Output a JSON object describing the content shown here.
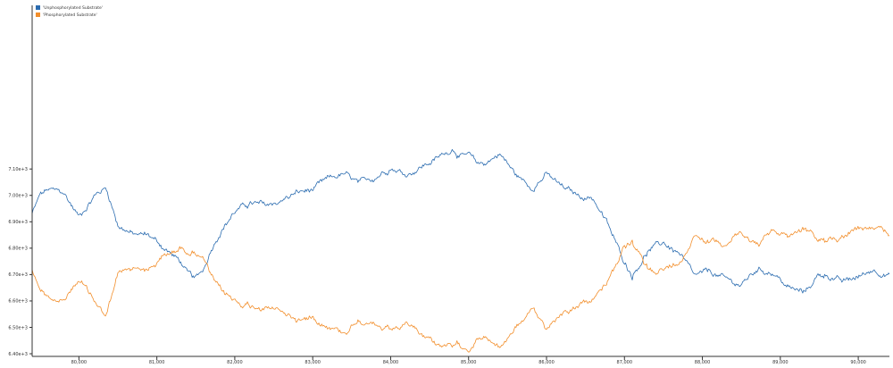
{
  "chart_data": {
    "type": "line",
    "title": "",
    "xlabel": "",
    "ylabel": "",
    "xlim": [
      79400,
      90400
    ],
    "ylim": [
      6390,
      7720
    ],
    "grid": false,
    "legend_position": "top-left",
    "x_ticks": [
      80000,
      81000,
      82000,
      83000,
      84000,
      85000,
      86000,
      87000,
      88000,
      89000,
      90000
    ],
    "x_tick_labels": [
      "80,000",
      "81,000",
      "82,000",
      "83,000",
      "84,000",
      "85,000",
      "86,000",
      "87,000",
      "88,000",
      "89,000",
      "90,000"
    ],
    "y_ticks": [
      6400,
      6500,
      6600,
      6700,
      6800,
      6900,
      7000,
      7100
    ],
    "y_tick_labels": [
      "6.40e+3",
      "6.50e+3",
      "6.60e+3",
      "6.70e+3",
      "6.80e+3",
      "6.90e+3",
      "7.00e+3",
      "7.10e+3"
    ],
    "series": [
      {
        "name": "'Unphosphorylated Substrate'",
        "color": "#2b6cb0",
        "x": [
          79400,
          79500,
          79600,
          79800,
          80000,
          80100,
          80200,
          80350,
          80500,
          80700,
          80900,
          81100,
          81300,
          81400,
          81500,
          81600,
          81700,
          81800,
          82000,
          82200,
          82400,
          82600,
          82800,
          83000,
          83200,
          83400,
          83600,
          83800,
          84000,
          84200,
          84400,
          84600,
          84800,
          84900,
          85000,
          85100,
          85200,
          85400,
          85600,
          85800,
          86000,
          86200,
          86400,
          86600,
          86800,
          86900,
          87000,
          87100,
          87300,
          87500,
          87700,
          87900,
          88100,
          88300,
          88500,
          88700,
          88900,
          89100,
          89300,
          89500,
          89600,
          89800,
          90000,
          90200,
          90400
        ],
        "y": [
          6930,
          7000,
          7020,
          7010,
          6920,
          6960,
          7000,
          7030,
          6890,
          6850,
          6850,
          6800,
          6750,
          6700,
          6680,
          6720,
          6800,
          6860,
          6940,
          6970,
          6960,
          6980,
          7010,
          7020,
          7060,
          7080,
          7040,
          7070,
          7110,
          7080,
          7110,
          7140,
          7180,
          7150,
          7150,
          7120,
          7120,
          7160,
          7080,
          7030,
          7080,
          7030,
          7000,
          6990,
          6880,
          6810,
          6750,
          6700,
          6790,
          6820,
          6780,
          6690,
          6710,
          6680,
          6660,
          6720,
          6710,
          6650,
          6630,
          6700,
          6700,
          6670,
          6690,
          6720,
          6700
        ]
      },
      {
        "name": "'Phosphorylated Substrate'",
        "color": "#f28e2b",
        "x": [
          79400,
          79500,
          79600,
          79800,
          80000,
          80100,
          80200,
          80350,
          80500,
          80700,
          80900,
          81100,
          81300,
          81400,
          81500,
          81600,
          81700,
          81800,
          82000,
          82200,
          82400,
          82600,
          82800,
          83000,
          83200,
          83400,
          83600,
          83800,
          84000,
          84200,
          84400,
          84600,
          84800,
          84900,
          85000,
          85100,
          85200,
          85400,
          85600,
          85800,
          86000,
          86200,
          86400,
          86600,
          86800,
          86900,
          87000,
          87100,
          87300,
          87500,
          87700,
          87900,
          88100,
          88300,
          88500,
          88700,
          88900,
          89100,
          89300,
          89500,
          89600,
          89800,
          90000,
          90200,
          90400
        ],
        "y": [
          6720,
          6650,
          6620,
          6600,
          6680,
          6640,
          6600,
          6540,
          6700,
          6730,
          6720,
          6770,
          6800,
          6790,
          6790,
          6760,
          6690,
          6640,
          6600,
          6580,
          6580,
          6560,
          6530,
          6540,
          6510,
          6480,
          6540,
          6500,
          6480,
          6510,
          6470,
          6440,
          6420,
          6430,
          6420,
          6460,
          6460,
          6420,
          6500,
          6560,
          6500,
          6560,
          6580,
          6600,
          6690,
          6750,
          6800,
          6810,
          6720,
          6720,
          6740,
          6860,
          6830,
          6820,
          6860,
          6810,
          6860,
          6850,
          6880,
          6830,
          6820,
          6850,
          6880,
          6870,
          6850
        ]
      }
    ]
  }
}
